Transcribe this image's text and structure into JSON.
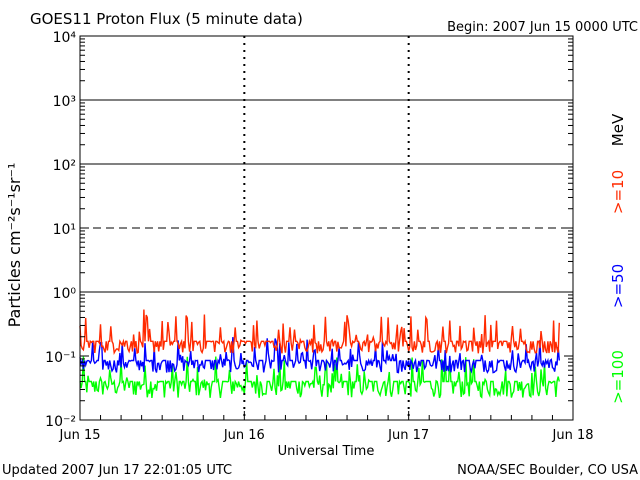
{
  "chart_data": {
    "type": "line",
    "title": "GOES11 Proton Flux (5 minute data)",
    "begin_label": "Begin: 2007 Jun 15 0000 UTC",
    "xlabel": "Universal Time",
    "ylabel": "Particles cm⁻²s⁻¹sr⁻¹",
    "y_scale": "log",
    "ylim": [
      0.01,
      10000
    ],
    "y_ticks": [
      {
        "value": 0.01,
        "label": "10⁻²"
      },
      {
        "value": 0.1,
        "label": "10⁻¹"
      },
      {
        "value": 1,
        "label": "10⁰"
      },
      {
        "value": 10,
        "label": "10¹"
      },
      {
        "value": 100,
        "label": "10²"
      },
      {
        "value": 1000,
        "label": "10³"
      },
      {
        "value": 10000,
        "label": "10⁴"
      }
    ],
    "xlim": [
      "2007-06-15",
      "2007-06-18"
    ],
    "x_ticks": [
      "Jun 15",
      "Jun 16",
      "Jun 17",
      "Jun 18"
    ],
    "threshold_lines": [
      {
        "value": 1,
        "style": "solid"
      },
      {
        "value": 10,
        "style": "dashed"
      },
      {
        "value": 100,
        "style": "solid"
      },
      {
        "value": 1000,
        "style": "solid"
      }
    ],
    "data_end": "2007-06-17T22:00",
    "series": [
      {
        "name": ">=10",
        "color": "#ff2a00",
        "typical": 0.17,
        "min": 0.11,
        "max": 0.55
      },
      {
        "name": ">=50",
        "color": "#0000ff",
        "typical": 0.085,
        "min": 0.055,
        "max": 0.2
      },
      {
        "name": ">=100",
        "color": "#00ff00",
        "typical": 0.04,
        "min": 0.022,
        "max": 0.1
      }
    ],
    "legend_units": "MeV"
  },
  "footer": {
    "updated": "Updated 2007 Jun 17 22:01:05 UTC",
    "source": "NOAA/SEC Boulder, CO USA"
  }
}
